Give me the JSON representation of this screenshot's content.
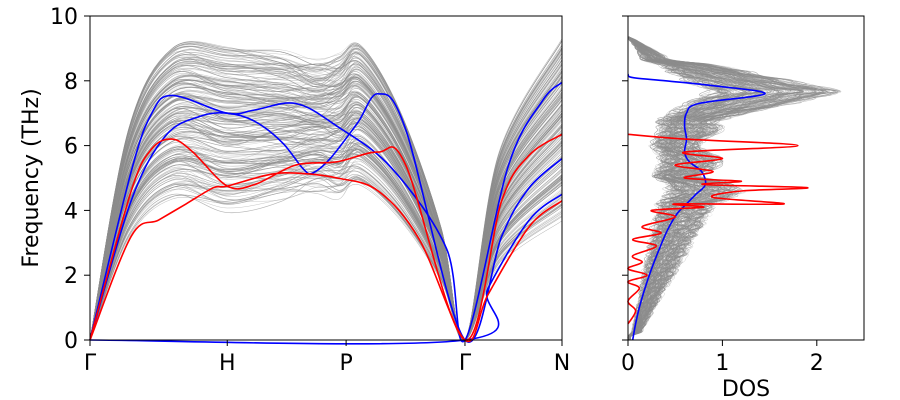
{
  "chart_data": [
    {
      "type": "line",
      "panel": "band-structure",
      "ylabel": "Frequency (THz)",
      "xlabel": "",
      "ylim": [
        0,
        10
      ],
      "x_tick_labels": [
        "Γ",
        "H",
        "P",
        "Γ",
        "N"
      ],
      "y_ticks": [
        0,
        2,
        4,
        6,
        8,
        10
      ],
      "grid": false,
      "legend": "none",
      "colors": {
        "ensemble": "#8c8c8c",
        "highlight_a": "#0000ff",
        "highlight_b": "#ff0000",
        "axes": "#000000"
      },
      "x_segment_lengths": [
        1.0,
        0.866,
        0.866,
        0.707
      ],
      "series": [
        {
          "color": "#0000ff",
          "points": [
            [
              0,
              0
            ],
            [
              0.3,
              5.2
            ],
            [
              0.45,
              7.0
            ],
            [
              0.6,
              7.55
            ],
            [
              1.0,
              7.0
            ],
            [
              1.2,
              7.1
            ],
            [
              1.5,
              7.3
            ],
            [
              1.8,
              6.6
            ],
            [
              2.2,
              5.3
            ],
            [
              2.6,
              2.8
            ],
            [
              2.732,
              0
            ],
            [
              3.05,
              5.4
            ],
            [
              3.3,
              7.4
            ],
            [
              3.439,
              7.95
            ]
          ]
        },
        {
          "color": "#0000ff",
          "points": [
            [
              0,
              0
            ],
            [
              0.3,
              4.3
            ],
            [
              0.55,
              6.3
            ],
            [
              0.8,
              6.9
            ],
            [
              1.0,
              7.0
            ],
            [
              1.2,
              6.75
            ],
            [
              1.4,
              6.1
            ],
            [
              1.55,
              5.3
            ],
            [
              1.62,
              5.15
            ],
            [
              1.75,
              5.6
            ],
            [
              1.95,
              6.7
            ],
            [
              2.1,
              7.6
            ],
            [
              2.3,
              6.5
            ],
            [
              2.732,
              0
            ],
            [
              3.0,
              3.2
            ],
            [
              3.2,
              4.7
            ],
            [
              3.439,
              5.6
            ]
          ]
        },
        {
          "color": "#0000ff",
          "points": [
            [
              0,
              0
            ],
            [
              2.732,
              0
            ],
            [
              2.9,
              1.6
            ],
            [
              3.2,
              3.7
            ],
            [
              3.439,
              4.5
            ]
          ]
        },
        {
          "color": "#ff0000",
          "points": [
            [
              0,
              0
            ],
            [
              0.3,
              4.6
            ],
            [
              0.45,
              5.9
            ],
            [
              0.6,
              6.2
            ],
            [
              0.75,
              5.8
            ],
            [
              1.0,
              4.75
            ],
            [
              1.2,
              4.8
            ],
            [
              1.5,
              5.4
            ],
            [
              1.8,
              5.5
            ],
            [
              2.1,
              5.8
            ],
            [
              2.3,
              5.4
            ],
            [
              2.732,
              0
            ],
            [
              3.0,
              4.3
            ],
            [
              3.2,
              5.7
            ],
            [
              3.439,
              6.35
            ]
          ]
        },
        {
          "color": "#ff0000",
          "points": [
            [
              0,
              0
            ],
            [
              0.3,
              3.2
            ],
            [
              0.5,
              3.7
            ],
            [
              0.7,
              4.2
            ],
            [
              0.9,
              4.7
            ],
            [
              1.0,
              4.75
            ],
            [
              1.3,
              5.1
            ],
            [
              1.5,
              5.15
            ],
            [
              1.8,
              5.0
            ],
            [
              2.1,
              4.6
            ],
            [
              2.4,
              3.1
            ],
            [
              2.732,
              0
            ],
            [
              2.9,
              1.4
            ],
            [
              3.2,
              3.5
            ],
            [
              3.439,
              4.3
            ]
          ]
        }
      ]
    },
    {
      "type": "line",
      "panel": "density-of-states",
      "xlabel": "DOS",
      "ylabel": "",
      "xlim": [
        0,
        2.5
      ],
      "ylim": [
        0,
        10
      ],
      "x_ticks": [
        0,
        1,
        2
      ],
      "grid": false,
      "legend": "none",
      "series": [
        {
          "color": "#0000ff",
          "points": [
            [
              0.05,
              0
            ],
            [
              0.08,
              0.5
            ],
            [
              0.12,
              1.0
            ],
            [
              0.18,
              1.6
            ],
            [
              0.25,
              2.2
            ],
            [
              0.33,
              2.8
            ],
            [
              0.42,
              3.4
            ],
            [
              0.52,
              3.9
            ],
            [
              0.62,
              4.2
            ],
            [
              0.72,
              4.5
            ],
            [
              0.82,
              4.8
            ],
            [
              0.78,
              5.2
            ],
            [
              0.65,
              5.5
            ],
            [
              0.6,
              5.8
            ],
            [
              0.62,
              6.2
            ],
            [
              0.6,
              6.6
            ],
            [
              0.62,
              7.0
            ],
            [
              0.75,
              7.3
            ],
            [
              1.45,
              7.6
            ],
            [
              0.9,
              7.85
            ],
            [
              0.4,
              8.0
            ],
            [
              0.05,
              8.1
            ],
            [
              0,
              8.2
            ]
          ]
        },
        {
          "color": "#ff0000",
          "points": [
            [
              0,
              0.5
            ],
            [
              0.08,
              0.9
            ],
            [
              0,
              1.2
            ],
            [
              0.12,
              1.6
            ],
            [
              0,
              1.8
            ],
            [
              0.2,
              2.0
            ],
            [
              0,
              2.2
            ],
            [
              0.15,
              2.4
            ],
            [
              0.05,
              2.6
            ],
            [
              0.3,
              2.9
            ],
            [
              0.05,
              3.1
            ],
            [
              0.35,
              3.3
            ],
            [
              0.15,
              3.5
            ],
            [
              0.5,
              3.8
            ],
            [
              0.25,
              4.0
            ],
            [
              0.8,
              4.1
            ],
            [
              0.5,
              4.2
            ],
            [
              1.65,
              4.2
            ],
            [
              0.9,
              4.4
            ],
            [
              1.2,
              4.6
            ],
            [
              1.9,
              4.7
            ],
            [
              0.8,
              4.8
            ],
            [
              1.2,
              4.9
            ],
            [
              0.6,
              5.0
            ],
            [
              0.9,
              5.2
            ],
            [
              0.5,
              5.4
            ],
            [
              1.0,
              5.6
            ],
            [
              0.6,
              5.8
            ],
            [
              1.8,
              6.0
            ],
            [
              0.6,
              6.2
            ],
            [
              0,
              6.35
            ]
          ]
        }
      ]
    }
  ]
}
